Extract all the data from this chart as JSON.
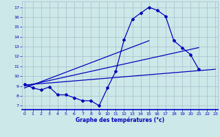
{
  "xlabel": "Graphe des températures (°c)",
  "bg_color": "#cce8e8",
  "grid_color": "#aabbcc",
  "line_color": "#0000bb",
  "spine_bottom_color": "#0000cc",
  "x_ticks": [
    0,
    1,
    2,
    3,
    4,
    5,
    6,
    7,
    8,
    9,
    10,
    11,
    12,
    13,
    14,
    15,
    16,
    17,
    18,
    19,
    20,
    21,
    22,
    23
  ],
  "y_ticks": [
    7,
    8,
    9,
    10,
    11,
    12,
    13,
    14,
    15,
    16,
    17
  ],
  "ylim": [
    6.6,
    17.6
  ],
  "xlim": [
    -0.3,
    23.3
  ],
  "hourly_temps": [
    9.2,
    8.8,
    8.6,
    8.9,
    8.1,
    8.1,
    7.8,
    7.5,
    7.5,
    7.0,
    8.8,
    10.5,
    13.7,
    15.8,
    16.4,
    17.0,
    16.7,
    16.1,
    13.6,
    12.9,
    12.2,
    10.7,
    null,
    null
  ],
  "trend1_x": [
    0,
    23
  ],
  "trend1_y": [
    9.1,
    10.7
  ],
  "trend2_x": [
    0,
    21
  ],
  "trend2_y": [
    9.0,
    12.9
  ],
  "trend3_x": [
    0,
    15
  ],
  "trend3_y": [
    8.8,
    13.6
  ]
}
